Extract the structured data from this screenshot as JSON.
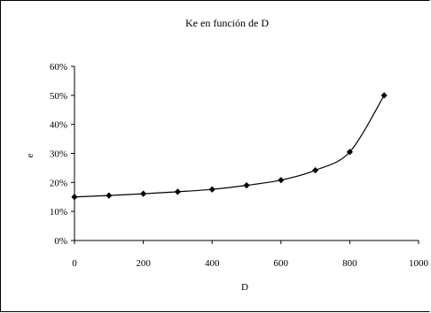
{
  "chart_data": {
    "type": "line",
    "title": "Ke en función de D",
    "xlabel": "D",
    "ylabel": "e",
    "xlim": [
      0,
      1000
    ],
    "ylim": [
      0,
      0.6
    ],
    "x_ticks": [
      "0",
      "200",
      "400",
      "600",
      "800",
      "1000"
    ],
    "y_ticks": [
      "0%",
      "10%",
      "20%",
      "30%",
      "40%",
      "50%",
      "60%"
    ],
    "grid": false,
    "legend": "none",
    "series": [
      {
        "marker": "diamond",
        "color": "#000000",
        "x": [
          0,
          100,
          200,
          300,
          400,
          500,
          600,
          700,
          800,
          900
        ],
        "y": [
          0.15,
          0.155,
          0.161,
          0.168,
          0.176,
          0.19,
          0.208,
          0.242,
          0.305,
          0.5
        ]
      }
    ]
  }
}
